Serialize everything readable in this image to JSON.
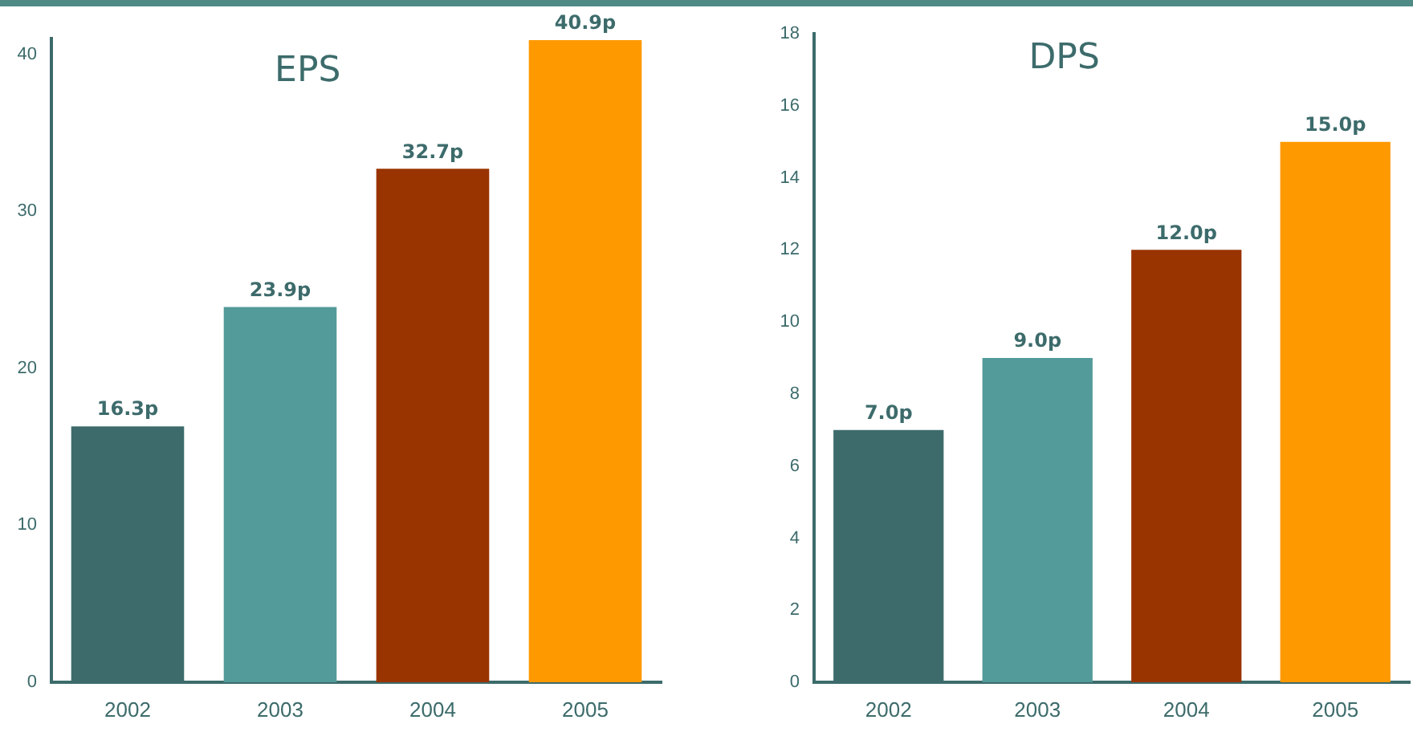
{
  "chart_data": [
    {
      "type": "bar",
      "title": "EPS",
      "categories": [
        "2002",
        "2003",
        "2004",
        "2005"
      ],
      "values": [
        16.3,
        23.9,
        32.7,
        40.9
      ],
      "colors": [
        "#3d6b6b",
        "#539a9a",
        "#993300",
        "#ff9900"
      ],
      "value_labels": [
        "16.3p",
        "23.9p",
        "32.7p",
        "40.9p"
      ],
      "ylim": [
        0,
        41
      ],
      "yticks": [
        0,
        10,
        20,
        30,
        40
      ]
    },
    {
      "type": "bar",
      "title": "DPS",
      "categories": [
        "2002",
        "2003",
        "2004",
        "2005"
      ],
      "values": [
        7.0,
        9.0,
        12.0,
        15.0
      ],
      "colors": [
        "#3d6b6b",
        "#539a9a",
        "#993300",
        "#ff9900"
      ],
      "value_labels": [
        "7.0p",
        "9.0p",
        "12.0p",
        "15.0p"
      ],
      "ylim": [
        0,
        18
      ],
      "yticks": [
        0,
        2,
        4,
        6,
        8,
        10,
        12,
        14,
        16,
        18
      ]
    }
  ]
}
